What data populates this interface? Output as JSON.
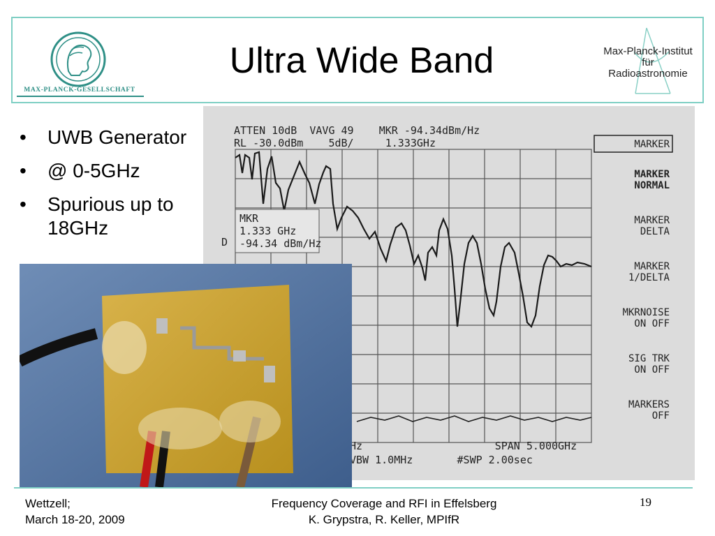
{
  "header": {
    "title": "Ultra Wide Band",
    "left_logo_text": "MAX-PLANCK-GESELLSCHAFT",
    "right_logo_lines": [
      "Max-Planck-Institut",
      "für",
      "Radioastronomie"
    ]
  },
  "bullets": [
    "UWB Generator",
    "@ 0-5GHz",
    "Spurious up to 18GHz"
  ],
  "analyzer": {
    "top_line1": "ATTEN 10dB  VAVG 49    MKR -94.34dBm/Hz",
    "top_line2": "RL -30.0dBm    5dB/     1.333GHz",
    "marker_box": [
      "MKR",
      "1.333 GHz",
      "-94.34 dBm/Hz"
    ],
    "marker_d": "D",
    "softkeys": [
      {
        "line1": "MARKER",
        "line2": ""
      },
      {
        "line1": "MARKER",
        "line2": "NORMAL"
      },
      {
        "line1": "MARKER",
        "line2": "DELTA"
      },
      {
        "line1": "MARKER",
        "line2": "1/DELTA"
      },
      {
        "line1": "MKRNOISE",
        "line2": "ON OFF"
      },
      {
        "line1": "SIG TRK",
        "line2": "ON OFF"
      },
      {
        "line1": "MARKERS",
        "line2": "OFF"
      }
    ],
    "bottom_line1": "Hz                     SPAN 5.000GHz",
    "bottom_line2": "VBW 1.0MHz       #SWP 2.00sec"
  },
  "footer": {
    "left_line1": "Wettzell;",
    "left_line2": "March 18-20, 2009",
    "center_line1": "Frequency Coverage and RFI in Effelsberg",
    "center_line2": "K. Grypstra, R. Keller, MPIfR",
    "page_number": "19"
  },
  "colors": {
    "accent": "#7fcfc4",
    "logo": "#2e8f86"
  }
}
